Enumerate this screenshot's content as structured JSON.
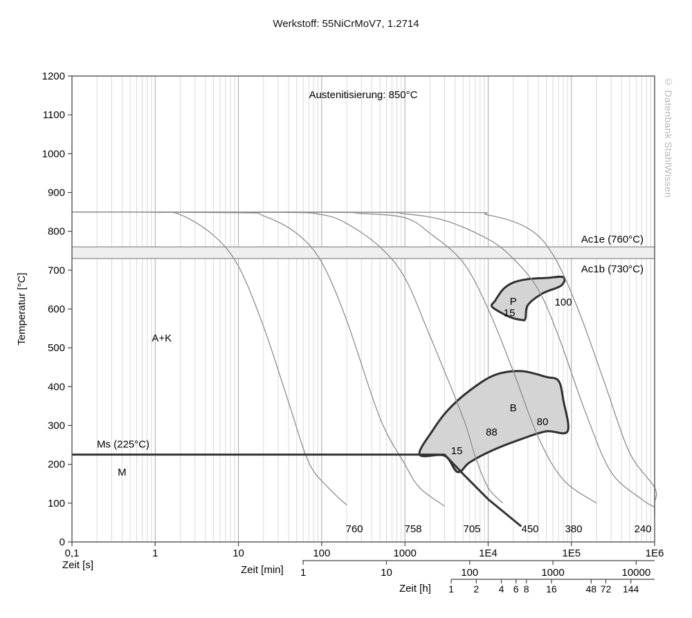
{
  "chart_data": {
    "type": "line",
    "title": "Werkstoff: 55NiCrMoV7, 1.2714",
    "subtitle": "Austenitisierung: 850°C",
    "copyright": "© Datenbank StahlWissen",
    "ylabel": "Temperatur [°C]",
    "ylim": [
      0,
      1200
    ],
    "yticks": [
      "0",
      "100",
      "200",
      "300",
      "400",
      "500",
      "600",
      "700",
      "800",
      "900",
      "1000",
      "1100",
      "1200"
    ],
    "x_scale": "log",
    "xlim_s": [
      0.1,
      1000000
    ],
    "x_axes": [
      {
        "label": "Zeit [s]",
        "ticks": [
          {
            "v": 0.1,
            "t": "0,1"
          },
          {
            "v": 1,
            "t": "1"
          },
          {
            "v": 10,
            "t": "10"
          },
          {
            "v": 100,
            "t": "100"
          },
          {
            "v": 1000,
            "t": "1000"
          },
          {
            "v": 10000,
            "t": "1E4"
          },
          {
            "v": 100000,
            "t": "1E5"
          },
          {
            "v": 1000000,
            "t": "1E6"
          }
        ]
      },
      {
        "label": "Zeit [min]",
        "ticks": [
          {
            "v": 60,
            "t": "1"
          },
          {
            "v": 600,
            "t": "10"
          },
          {
            "v": 6000,
            "t": "100"
          },
          {
            "v": 60000,
            "t": "1000"
          },
          {
            "v": 600000,
            "t": "10000"
          }
        ]
      },
      {
        "label": "Zeit [h]",
        "ticks": [
          {
            "v": 3600,
            "t": "1"
          },
          {
            "v": 7200,
            "t": "2"
          },
          {
            "v": 14400,
            "t": "4"
          },
          {
            "v": 21600,
            "t": "6"
          },
          {
            "v": 28800,
            "t": "8"
          },
          {
            "v": 57600,
            "t": "16"
          },
          {
            "v": 172800,
            "t": "48"
          },
          {
            "v": 259200,
            "t": "72"
          },
          {
            "v": 518400,
            "t": "144"
          }
        ]
      }
    ],
    "reference_lines": [
      {
        "label": "Ac1e (760°C)",
        "y": 760
      },
      {
        "label": "Ac1b (730°C)",
        "y": 730
      },
      {
        "label": "Ms (225°C)",
        "y": 225
      }
    ],
    "cooling_curves": [
      {
        "hardness": "760",
        "points": [
          [
            0.1,
            850
          ],
          [
            1,
            849
          ],
          [
            2,
            843
          ],
          [
            5,
            790
          ],
          [
            10,
            710
          ],
          [
            20,
            555
          ],
          [
            40,
            360
          ],
          [
            70,
            205
          ],
          [
            120,
            140
          ],
          [
            200,
            95
          ]
        ]
      },
      {
        "hardness": "758",
        "points": [
          [
            0.1,
            850
          ],
          [
            10,
            848
          ],
          [
            20,
            840
          ],
          [
            50,
            795
          ],
          [
            100,
            720
          ],
          [
            200,
            570
          ],
          [
            500,
            320
          ],
          [
            1000,
            200
          ],
          [
            1500,
            140
          ],
          [
            3000,
            92
          ]
        ]
      },
      {
        "hardness": "705",
        "points": [
          [
            0.1,
            850
          ],
          [
            30,
            849
          ],
          [
            100,
            843
          ],
          [
            200,
            820
          ],
          [
            500,
            760
          ],
          [
            1000,
            680
          ],
          [
            2000,
            530
          ],
          [
            5000,
            320
          ],
          [
            7000,
            220
          ],
          [
            10000,
            140
          ],
          [
            15000,
            100
          ]
        ]
      },
      {
        "hardness": "450",
        "points": [
          [
            0.1,
            850
          ],
          [
            100,
            849
          ],
          [
            300,
            846
          ],
          [
            1000,
            835
          ],
          [
            2000,
            795
          ],
          [
            5000,
            720
          ],
          [
            10000,
            600
          ],
          [
            20000,
            440
          ],
          [
            40000,
            270
          ],
          [
            80000,
            160
          ],
          [
            200000,
            100
          ]
        ]
      },
      {
        "hardness": "380",
        "points": [
          [
            0.1,
            850
          ],
          [
            300,
            849
          ],
          [
            1000,
            845
          ],
          [
            3000,
            828
          ],
          [
            10000,
            780
          ],
          [
            20000,
            730
          ],
          [
            40000,
            650
          ],
          [
            70000,
            530
          ],
          [
            150000,
            330
          ],
          [
            300000,
            180
          ],
          [
            700000,
            110
          ],
          [
            1000000,
            90
          ]
        ]
      },
      {
        "hardness": "240",
        "points": [
          [
            0.1,
            850
          ],
          [
            3000,
            849
          ],
          [
            10000,
            842
          ],
          [
            30000,
            808
          ],
          [
            60000,
            740
          ],
          [
            120000,
            600
          ],
          [
            250000,
            410
          ],
          [
            500000,
            230
          ],
          [
            1000000,
            140
          ],
          [
            1500000,
            100
          ],
          [
            2500000,
            70
          ]
        ]
      }
    ],
    "cooling_curve_labels": [
      "760",
      "758",
      "705",
      "450",
      "380",
      "240"
    ],
    "regions": [
      {
        "label": "A+K",
        "x": 1.2,
        "y": 525
      },
      {
        "label": "M",
        "x": 0.4,
        "y": 180
      },
      {
        "label": "P",
        "x": 20000,
        "y": 620,
        "start": "15",
        "end": "100",
        "points": [
          [
            12000,
            620
          ],
          [
            15000,
            650
          ],
          [
            20000,
            668
          ],
          [
            30000,
            677
          ],
          [
            50000,
            680
          ],
          [
            80000,
            682
          ],
          [
            75000,
            660
          ],
          [
            45000,
            640
          ],
          [
            30000,
            610
          ],
          [
            28000,
            575
          ],
          [
            25000,
            572
          ],
          [
            18000,
            580
          ],
          [
            12000,
            600
          ],
          [
            11000,
            610
          ]
        ]
      },
      {
        "label": "B",
        "x": 20000,
        "y": 345,
        "start": "15",
        "end": "80",
        "points": [
          [
            1500,
            225
          ],
          [
            2200,
            290
          ],
          [
            3300,
            340
          ],
          [
            6000,
            390
          ],
          [
            12000,
            430
          ],
          [
            25000,
            440
          ],
          [
            50000,
            425
          ],
          [
            70000,
            415
          ],
          [
            80000,
            365
          ],
          [
            90000,
            285
          ],
          [
            50000,
            285
          ],
          [
            25000,
            265
          ],
          [
            11000,
            235
          ],
          [
            6000,
            205
          ],
          [
            4300,
            180
          ],
          [
            3000,
            222
          ]
        ]
      }
    ],
    "martensite_line": {
      "points": [
        [
          0.1,
          225
        ],
        [
          3000,
          225
        ],
        [
          5000,
          175
        ],
        [
          10000,
          110
        ],
        [
          25000,
          40
        ]
      ]
    },
    "annotations": [
      {
        "text": "15",
        "x": 18000,
        "y": 590
      },
      {
        "text": "100",
        "x": 80000,
        "y": 618
      },
      {
        "text": "88",
        "x": 11000,
        "y": 283
      },
      {
        "text": "80",
        "x": 45000,
        "y": 310
      },
      {
        "text": "15",
        "x": 4200,
        "y": 235
      }
    ]
  }
}
